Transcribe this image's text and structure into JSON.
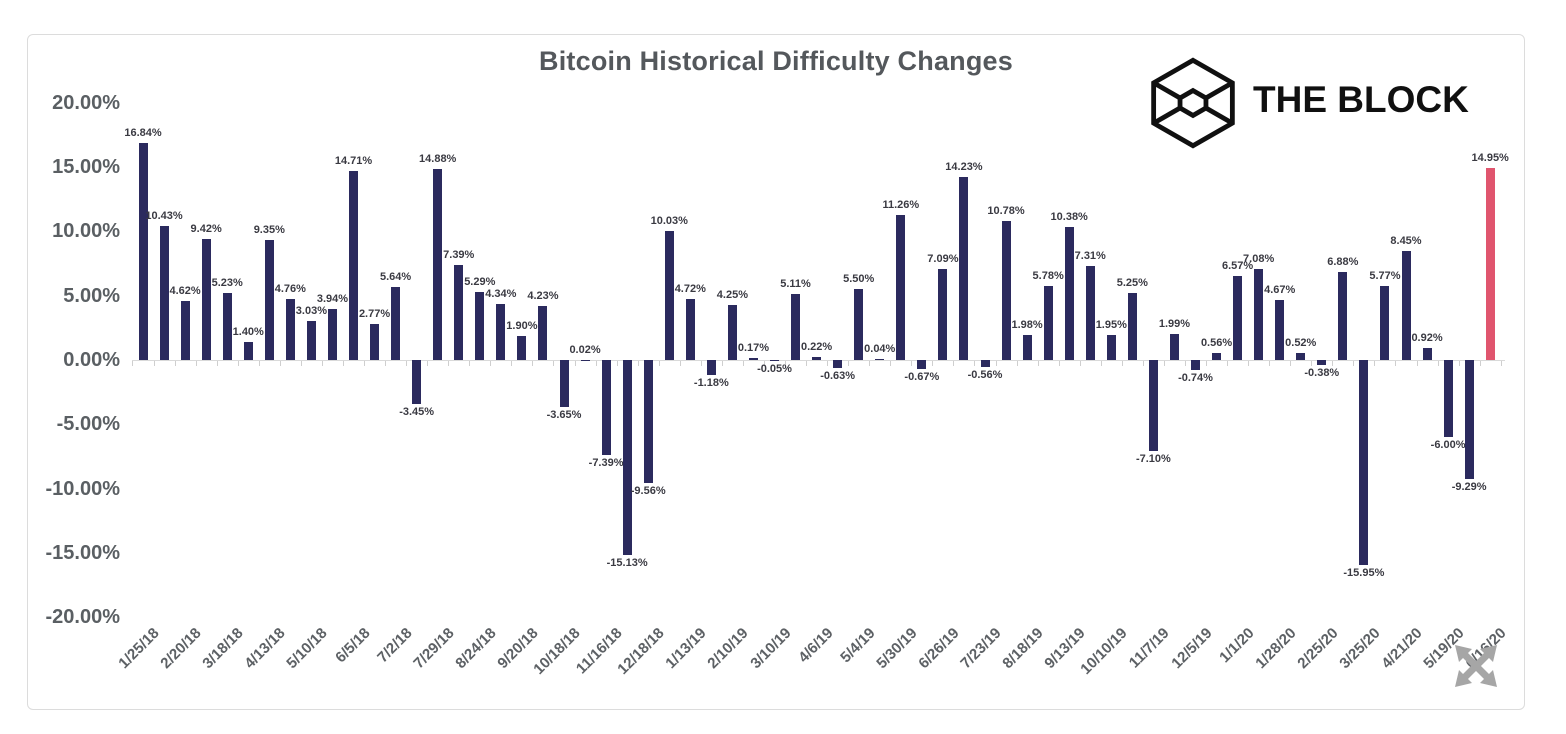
{
  "title": "Bitcoin Historical Difficulty Changes",
  "logo": {
    "text": "THE BLOCK",
    "icon": "the-block-cube-icon"
  },
  "controls": {
    "move_icon": "move-cursor-icon"
  },
  "chart_data": {
    "type": "bar",
    "title": "Bitcoin Historical Difficulty Changes",
    "xlabel": "",
    "ylabel": "",
    "grid": "none",
    "legend": "none",
    "ylim": [
      -20,
      20
    ],
    "y_tick_labels": [
      "20.00%",
      "15.00%",
      "10.00%",
      "5.00%",
      "0.00%",
      "-5.00%",
      "-10.00%",
      "-15.00%",
      "-20.00%"
    ],
    "y_tick_values": [
      20,
      15,
      10,
      5,
      0,
      -5,
      -10,
      -15,
      -20
    ],
    "x_tick_labels": [
      "1/25/18",
      "2/20/18",
      "3/18/18",
      "4/13/18",
      "5/10/18",
      "6/5/18",
      "7/2/18",
      "7/29/18",
      "8/24/18",
      "9/20/18",
      "10/18/18",
      "11/16/18",
      "12/18/18",
      "1/13/19",
      "2/10/19",
      "3/10/19",
      "4/6/19",
      "5/4/19",
      "5/30/19",
      "6/26/19",
      "7/23/19",
      "8/18/19",
      "9/13/19",
      "10/10/19",
      "11/7/19",
      "12/5/19",
      "1/1/20",
      "1/28/20",
      "2/25/20",
      "3/25/20",
      "4/21/20",
      "5/19/20",
      "6/16/20"
    ],
    "x_tick_every_n_bars": 2,
    "values": [
      16.84,
      10.43,
      4.62,
      9.42,
      5.23,
      1.4,
      9.35,
      4.76,
      3.03,
      3.94,
      14.71,
      2.77,
      5.64,
      -3.45,
      14.88,
      7.39,
      5.29,
      4.34,
      1.9,
      4.23,
      -3.65,
      0.02,
      -7.39,
      -15.13,
      -9.56,
      10.03,
      4.72,
      -1.18,
      4.25,
      0.17,
      -0.05,
      5.11,
      0.22,
      -0.63,
      5.5,
      0.04,
      11.26,
      -0.67,
      7.09,
      14.23,
      -0.56,
      10.78,
      1.98,
      5.78,
      10.38,
      7.31,
      1.95,
      5.25,
      -7.1,
      1.99,
      -0.74,
      0.56,
      6.57,
      7.08,
      4.67,
      0.52,
      -0.38,
      6.88,
      -15.95,
      5.77,
      8.45,
      0.92,
      -6.0,
      -9.29,
      14.95
    ],
    "data_labels": [
      "16.84%",
      "10.43%",
      "4.62%",
      "9.42%",
      "5.23%",
      "1.40%",
      "9.35%",
      "4.76%",
      "3.03%",
      "3.94%",
      "14.71%",
      "2.77%",
      "5.64%",
      "-3.45%",
      "14.88%",
      "7.39%",
      "5.29%",
      "4.34%",
      "1.90%",
      "4.23%",
      "-3.65%",
      "0.02%",
      "-7.39%",
      "-15.13%",
      "-9.56%",
      "10.03%",
      "4.72%",
      "-1.18%",
      "4.25%",
      "0.17%",
      "-0.05%",
      "5.11%",
      "0.22%",
      "-0.63%",
      "5.50%",
      "0.04%",
      "11.26%",
      "-0.67%",
      "7.09%",
      "14.23%",
      "-0.56%",
      "10.78%",
      "1.98%",
      "5.78%",
      "10.38%",
      "7.31%",
      "1.95%",
      "5.25%",
      "-7.10%",
      "1.99%",
      "-0.74%",
      "0.56%",
      "6.57%",
      "7.08%",
      "4.67%",
      "0.52%",
      "-0.38%",
      "6.88%",
      "-15.95%",
      "5.77%",
      "8.45%",
      "0.92%",
      "-6.00%",
      "-9.29%",
      "14.95%"
    ],
    "bar_color": "#2b2a5e",
    "highlight_bar_index": 64,
    "highlight_bar_color": "#e0556e",
    "data_label_color": "#3a3a42",
    "axis_label_color": "#5d6165"
  }
}
